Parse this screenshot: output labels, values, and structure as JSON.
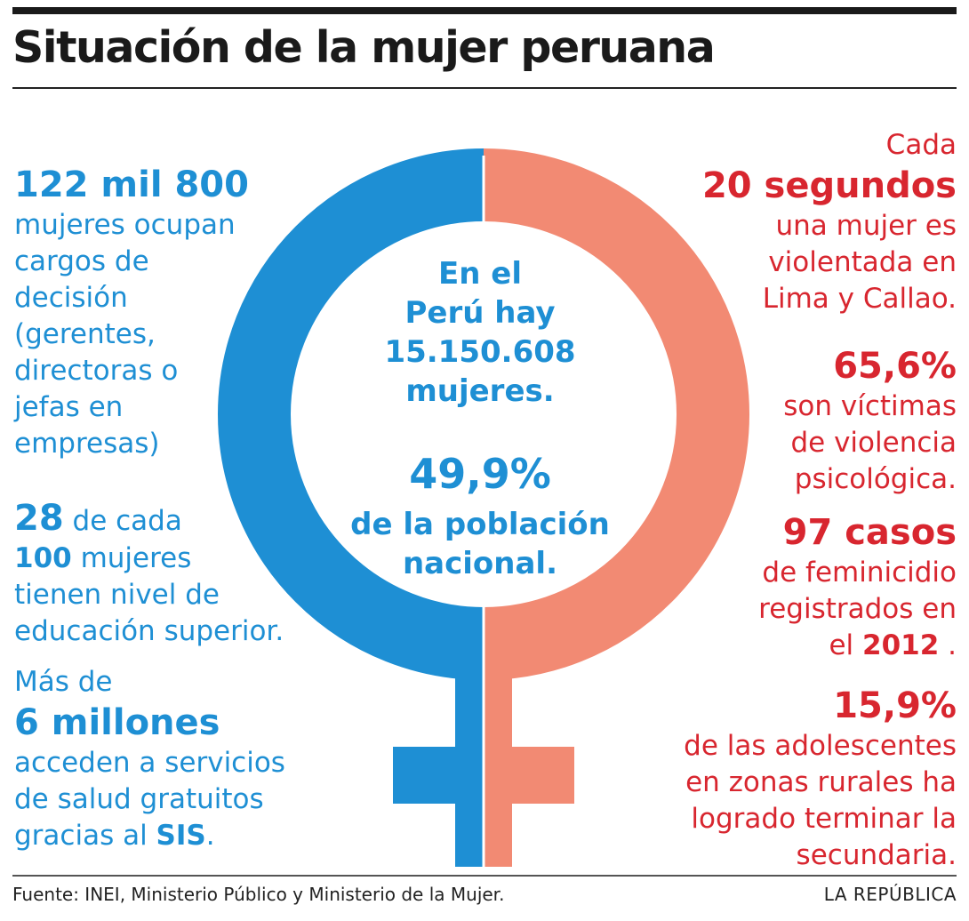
{
  "title": "Situación de la mujer peruana",
  "center": {
    "line1": "En el",
    "line2": "Perú hay",
    "line3": "15.150.608",
    "line4": "mujeres.",
    "pct": "49,9%",
    "line5": "de la población",
    "line6": "nacional."
  },
  "left_stats": {
    "s1": {
      "big": "122 mil 800",
      "lines": [
        "mujeres ocupan",
        "cargos de",
        "decisión",
        "(gerentes,",
        "directoras o",
        "jefas en",
        "empresas)"
      ]
    },
    "s2": {
      "n1": "28",
      "t1": " de cada",
      "n2": "100",
      "t2": " mujeres",
      "l3": "tienen nivel de",
      "l4": "educación superior."
    },
    "s3": {
      "pre": "Más de",
      "big": "6 millones",
      "l1": "acceden a servicios",
      "l2": "de salud gratuitos",
      "l3a": "gracias al ",
      "l3b": "SIS",
      "l3c": "."
    }
  },
  "right_stats": {
    "s1": {
      "pre": "Cada",
      "big": "20 segundos",
      "lines": [
        "una mujer es",
        "violentada en",
        "Lima y Callao."
      ]
    },
    "s2": {
      "big": "65,6%",
      "lines": [
        "son víctimas",
        "de violencia",
        "psicológica."
      ]
    },
    "s3": {
      "big": "97 casos",
      "l1": "de feminicidio",
      "l2": "registrados en",
      "l3a": "el ",
      "l3b": "2012",
      "l3c": " ."
    },
    "s4": {
      "big": "15,9%",
      "lines": [
        "de las adolescentes",
        "en zonas rurales ha",
        "logrado terminar la",
        "secundaria."
      ]
    }
  },
  "colors": {
    "blue": "#1e8fd4",
    "salmon": "#f28a73",
    "red": "#d8262f",
    "title": "#1a1a1a"
  },
  "footer": {
    "source": "Fuente: INEI, Ministerio Público y Ministerio de la Mujer.",
    "brand": "LA REPÚBLICA"
  }
}
